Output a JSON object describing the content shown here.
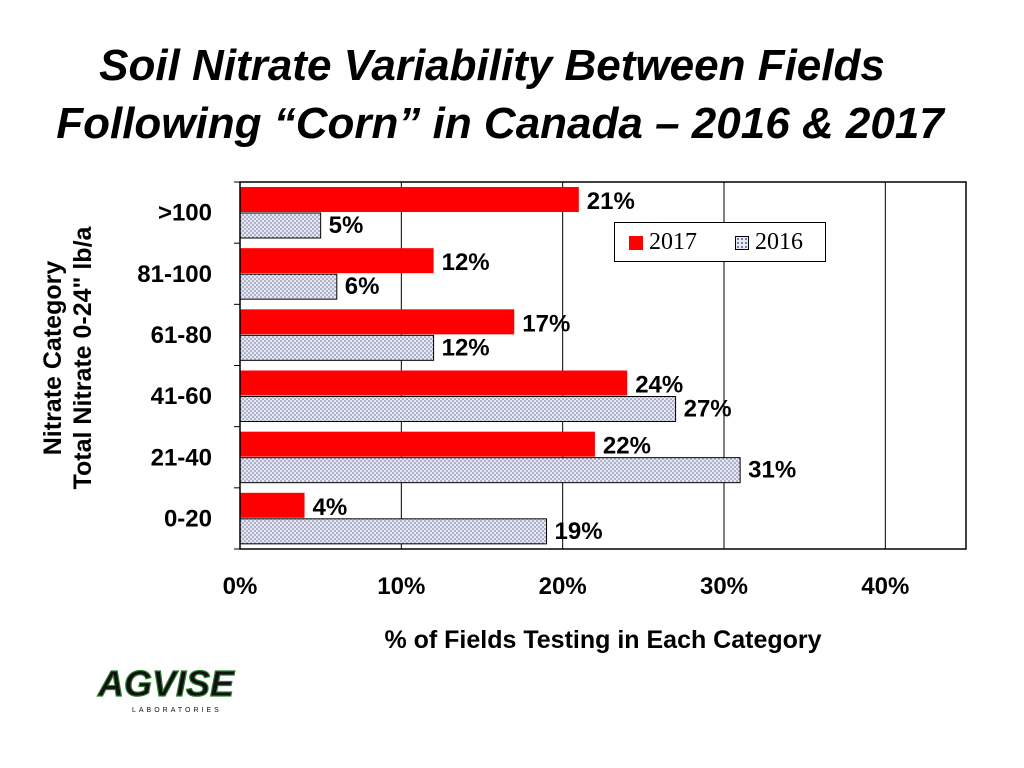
{
  "title_line1": "Soil Nitrate Variability Between Fields",
  "title_line2": "Following “Corn” in Canada – 2016 & 2017",
  "ylabel_line1": "Nitrate Category",
  "ylabel_line2": "Total Nitrate 0-24\" lb/a",
  "xlabel": "% of Fields Testing in Each Category",
  "logo_text": "AGVISE",
  "logo_subtext": "LABORATORIES",
  "colors": {
    "series_2017": "#ff0000",
    "series_2016_fill": "#e6e8f2",
    "series_2016_dot": "#6a6f9a"
  },
  "chart_data": {
    "type": "bar",
    "orientation": "horizontal",
    "title": "Soil Nitrate Variability Between Fields Following “Corn” in Canada – 2016 & 2017",
    "xlabel": "% of Fields Testing in Each Category",
    "ylabel": "Nitrate Category Total Nitrate 0-24\" lb/a",
    "categories": [
      ">100",
      "81-100",
      "61-80",
      "41-60",
      "21-40",
      "0-20"
    ],
    "series": [
      {
        "name": "2017",
        "values": [
          21,
          12,
          17,
          24,
          22,
          4
        ],
        "labels": [
          "21%",
          "12%",
          "17%",
          "24%",
          "22%",
          "4%"
        ]
      },
      {
        "name": "2016",
        "values": [
          5,
          6,
          12,
          27,
          31,
          19
        ],
        "labels": [
          "5%",
          "6%",
          "12%",
          "27%",
          "31%",
          "19%"
        ]
      }
    ],
    "xlim": [
      0,
      45
    ],
    "xticks": [
      0,
      10,
      20,
      30,
      40
    ],
    "xtick_labels": [
      "0%",
      "10%",
      "20%",
      "30%",
      "40%"
    ],
    "grid": "vertical",
    "legend": "top-right",
    "legend_entries": [
      "2017",
      "2016"
    ]
  }
}
